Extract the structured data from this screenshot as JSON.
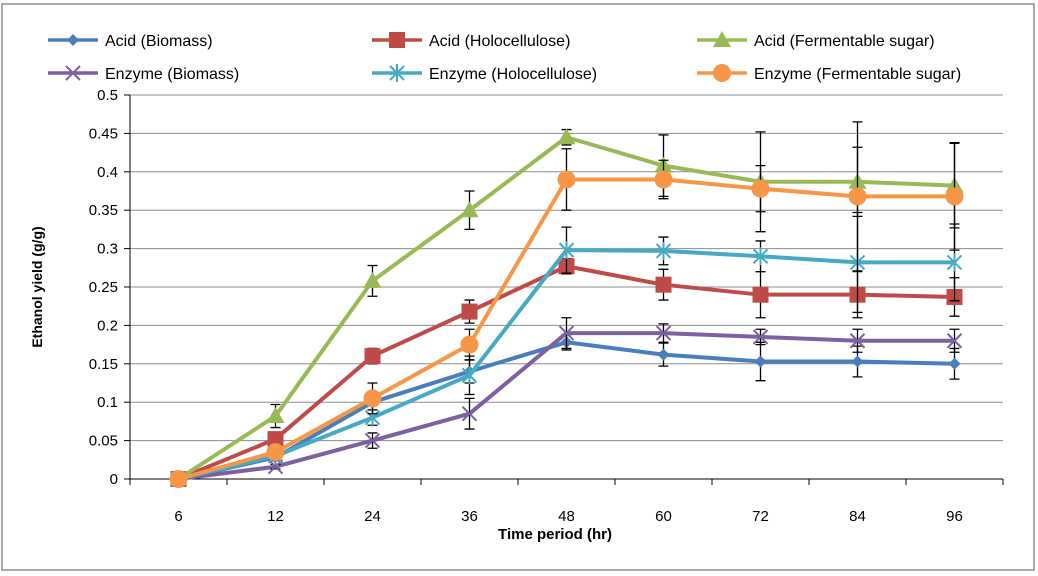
{
  "chart_data": {
    "type": "line",
    "title": "",
    "xlabel": "Time period (hr)",
    "ylabel": "Ethanol yield (g/g)",
    "categories": [
      "6",
      "12",
      "24",
      "36",
      "48",
      "60",
      "72",
      "84",
      "96"
    ],
    "ylim": [
      0,
      0.5
    ],
    "yticks": [
      "0",
      "0.05",
      "0.1",
      "0.15",
      "0.2",
      "0.25",
      "0.3",
      "0.35",
      "0.4",
      "0.45",
      "0.5"
    ],
    "grid": true,
    "legend_position": "top",
    "series": [
      {
        "name": "Acid (Biomass)",
        "color": "#4a7ebb",
        "marker": "diamond",
        "values": [
          0,
          0.028,
          0.1,
          0.14,
          0.178,
          0.162,
          0.153,
          0.153,
          0.15
        ],
        "errors": [
          0,
          0.004,
          0.01,
          0.015,
          0.01,
          0.015,
          0.025,
          0.02,
          0.02
        ]
      },
      {
        "name": "Acid (Holocellulose)",
        "color": "#be4b48",
        "marker": "square",
        "values": [
          0,
          0.052,
          0.16,
          0.218,
          0.277,
          0.253,
          0.24,
          0.24,
          0.237
        ],
        "errors": [
          0,
          0.005,
          0.01,
          0.015,
          0.01,
          0.02,
          0.03,
          0.03,
          0.025
        ]
      },
      {
        "name": "Acid (Fermentable sugar)",
        "color": "#98b954",
        "marker": "triangle",
        "values": [
          0,
          0.082,
          0.258,
          0.35,
          0.445,
          0.408,
          0.387,
          0.387,
          0.382
        ],
        "errors": [
          0,
          0.015,
          0.02,
          0.025,
          0.01,
          0.04,
          0.065,
          0.045,
          0.055
        ]
      },
      {
        "name": "Enzyme (Biomass)",
        "color": "#7d60a0",
        "marker": "x",
        "values": [
          0,
          0.016,
          0.05,
          0.085,
          0.19,
          0.19,
          0.185,
          0.18,
          0.18
        ],
        "errors": [
          0,
          0.003,
          0.01,
          0.02,
          0.02,
          0.012,
          0.01,
          0.015,
          0.015
        ]
      },
      {
        "name": "Enzyme (Holocellulose)",
        "color": "#46aac5",
        "marker": "star",
        "values": [
          0,
          0.03,
          0.08,
          0.135,
          0.298,
          0.297,
          0.29,
          0.282,
          0.282
        ],
        "errors": [
          0,
          0.005,
          0.01,
          0.025,
          0.03,
          0.018,
          0.02,
          0.065,
          0.05
        ]
      },
      {
        "name": "Enzyme (Fermentable sugar)",
        "color": "#f79646",
        "marker": "circle",
        "values": [
          0,
          0.035,
          0.105,
          0.175,
          0.39,
          0.39,
          0.378,
          0.368,
          0.368
        ],
        "errors": [
          0,
          0.005,
          0.02,
          0.02,
          0.04,
          0.025,
          0.03,
          0.097,
          0.07
        ]
      }
    ]
  }
}
